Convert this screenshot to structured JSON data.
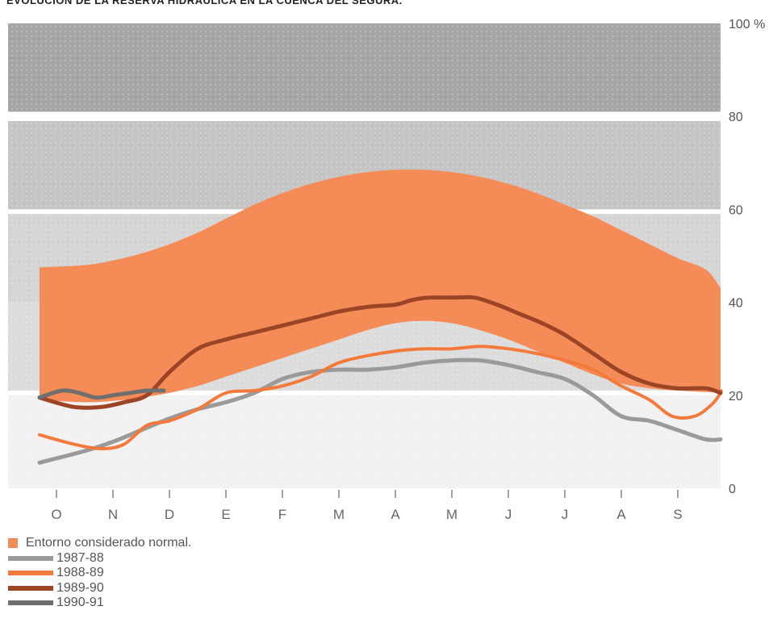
{
  "chart_data": {
    "type": "line",
    "title": "EVOLUCIÓN DE LA RESERVA HIDRÁULICA EN LA CUENCA DEL SEGURA.",
    "ylabel": "",
    "xlabel": "",
    "y_unit": "%",
    "ylim": [
      0,
      100
    ],
    "yticks": [
      0,
      20,
      40,
      60,
      80,
      100
    ],
    "ytick_labels": [
      "0",
      "20",
      "40",
      "60",
      "80",
      "100 %"
    ],
    "categories": [
      "O",
      "N",
      "D",
      "E",
      "F",
      "M",
      "A",
      "M",
      "J",
      "J",
      "A",
      "S"
    ],
    "x_range": [
      0,
      12.5
    ],
    "grid": false,
    "legend_position": "bottom-left",
    "background_bands": [
      {
        "from": 0,
        "to": 20,
        "color": "#f1f1f1"
      },
      {
        "from": 21,
        "to": 40,
        "color": "#dcdcdc"
      },
      {
        "from": 40,
        "to": 59,
        "color": "#d4d4d4"
      },
      {
        "from": 60,
        "to": 79,
        "color": "#c5c5c5"
      },
      {
        "from": 81,
        "to": 100,
        "color": "#a6a6a6"
      }
    ],
    "normal_band": {
      "name": "Entorno considerado normal.",
      "color": "#f58c58",
      "x": [
        -0.3,
        0.5,
        1.0,
        1.5,
        2.0,
        2.5,
        3.0,
        3.5,
        4.0,
        4.5,
        5.0,
        5.5,
        6.0,
        6.5,
        7.0,
        7.5,
        8.0,
        8.5,
        9.0,
        9.5,
        10.0,
        10.5,
        11.0,
        11.5,
        12.2
      ],
      "upper": [
        47.5,
        48,
        49,
        50.5,
        52.5,
        55,
        58,
        61,
        63.5,
        65.5,
        67,
        68,
        68.5,
        68.5,
        68,
        67,
        65.5,
        63.5,
        61,
        58.5,
        55.5,
        52.5,
        49.5,
        47,
        43
      ],
      "lower": [
        19,
        18.5,
        18.8,
        19.5,
        20.5,
        22,
        24,
        26,
        28,
        30,
        32,
        34,
        35.5,
        36,
        35.5,
        34,
        32,
        29.5,
        27,
        24.5,
        22.5,
        21.5,
        21,
        20.7,
        20.5
      ]
    },
    "series": [
      {
        "name": "1987-88",
        "color": "#9a9a9a",
        "x": [
          -0.3,
          0.5,
          1.0,
          1.5,
          2.0,
          2.5,
          3.0,
          3.5,
          4.0,
          4.5,
          5.0,
          5.5,
          6.0,
          6.5,
          7.0,
          7.5,
          8.0,
          8.5,
          9.0,
          9.5,
          10.0,
          10.5,
          11.0,
          11.5,
          12.2
        ],
        "values": [
          5.5,
          8,
          10,
          12.5,
          15,
          17,
          18.5,
          20.5,
          23.5,
          25,
          25.5,
          25.5,
          26,
          27,
          27.5,
          27.5,
          26.5,
          25,
          23.5,
          20,
          15.5,
          14.5,
          12.5,
          10.5,
          10.5
        ]
      },
      {
        "name": "1988-89",
        "color": "#f47a3c",
        "x": [
          -0.3,
          0.3,
          0.8,
          1.2,
          1.6,
          2.0,
          2.5,
          3.0,
          3.5,
          4.0,
          4.5,
          5.0,
          5.5,
          6.0,
          6.5,
          7.0,
          7.5,
          8.0,
          8.5,
          9.0,
          9.5,
          10.0,
          10.5,
          10.9,
          11.3,
          11.6,
          12.0,
          12.2
        ],
        "values": [
          11.5,
          9.5,
          8.5,
          9.5,
          13.5,
          14.5,
          17,
          20.5,
          21,
          22,
          24,
          27,
          28.5,
          29.5,
          30,
          30,
          30.5,
          30,
          29,
          27.5,
          25.5,
          22,
          19,
          15.5,
          15.5,
          18,
          20.5,
          21
        ]
      },
      {
        "name": "1989-90",
        "color": "#9c4526",
        "x": [
          -0.3,
          0.3,
          0.8,
          1.2,
          1.6,
          2.0,
          2.5,
          3.0,
          3.5,
          4.0,
          4.5,
          5.0,
          5.5,
          6.0,
          6.3,
          6.6,
          7.0,
          7.4,
          7.8,
          8.2,
          8.6,
          9.0,
          9.5,
          10.0,
          10.5,
          11.0,
          11.5,
          12.2
        ],
        "values": [
          19.5,
          17.5,
          17.5,
          18.5,
          20,
          25,
          30,
          32,
          33.5,
          35,
          36.5,
          38,
          39,
          39.5,
          40.5,
          41,
          41,
          41,
          39.5,
          37.5,
          35.5,
          33,
          29,
          25,
          22.5,
          21.5,
          21.5,
          20.5
        ]
      },
      {
        "name": "1990-91",
        "color": "#6f6f6f",
        "x": [
          -0.3,
          0.1,
          0.4,
          0.7,
          1.0,
          1.3,
          1.6,
          1.9
        ],
        "values": [
          19.5,
          21,
          20.5,
          19.5,
          20,
          20.5,
          21,
          21
        ]
      }
    ]
  }
}
